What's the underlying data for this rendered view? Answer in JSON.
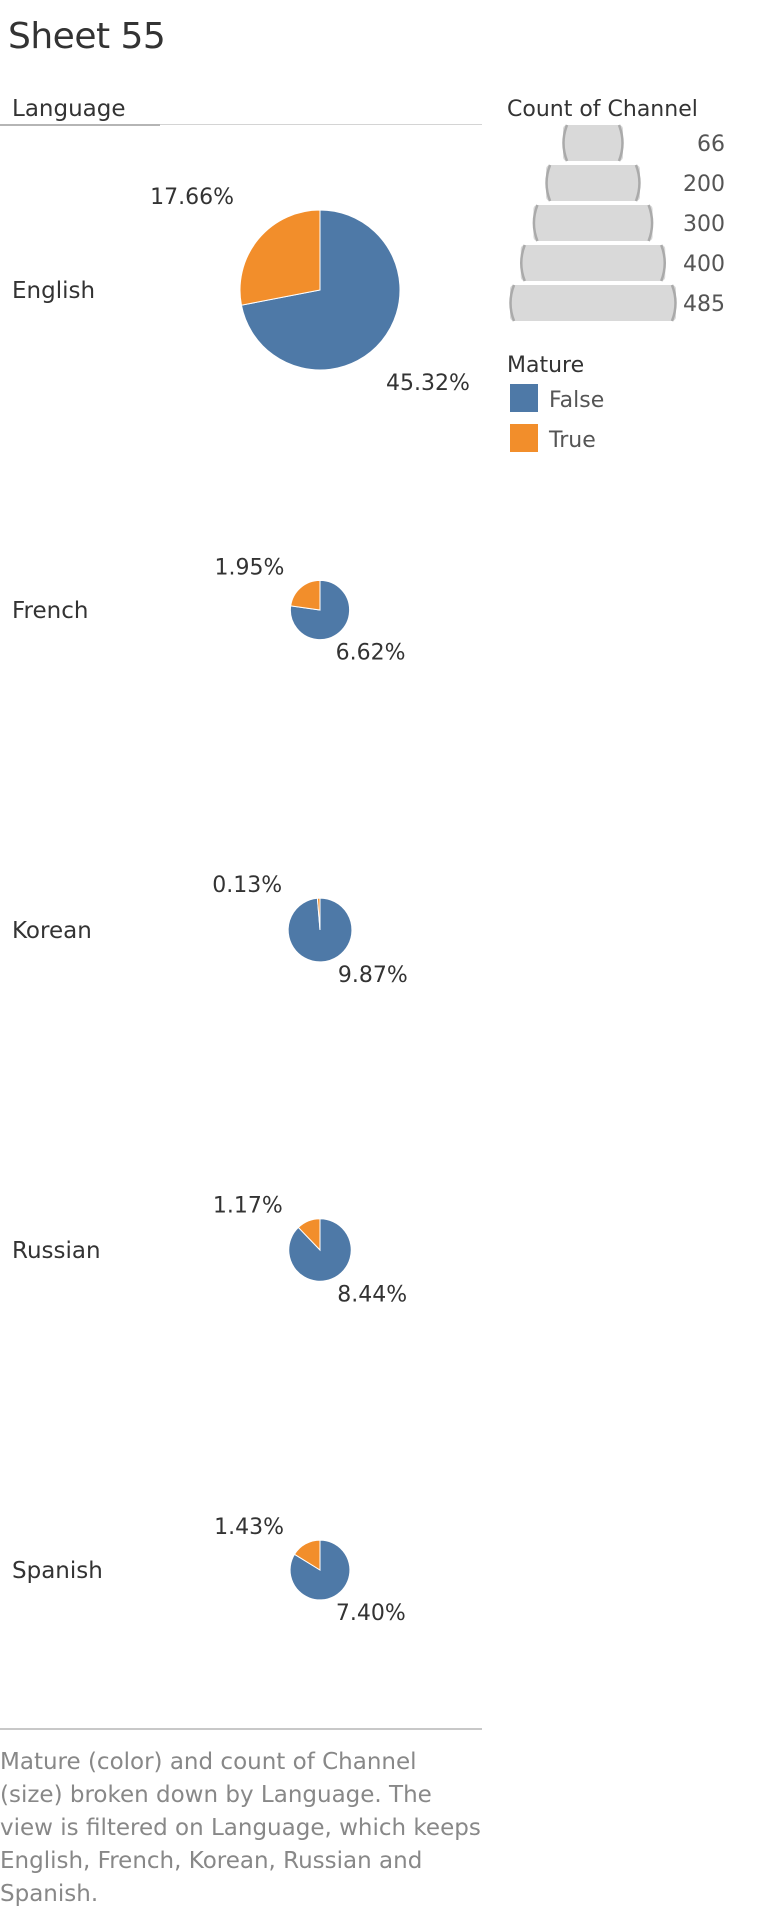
{
  "sheet_title": "Sheet 55",
  "row_header": "Language",
  "caption": "Mature (color) and count of Channel (size) broken down by Language. The view is filtered on Language, which keeps English, French, Korean, Russian and Spanish.",
  "colors": {
    "False": "#4e79a7",
    "True": "#f28e2b",
    "size_legend_fill": "#d9d9d9",
    "size_legend_stroke": "#aaaaaa"
  },
  "chart_data": {
    "type": "pie",
    "rows": [
      {
        "language": "English",
        "count": 629,
        "slices": [
          {
            "mature": "False",
            "percent": 45.32,
            "label": "45.32%"
          },
          {
            "mature": "True",
            "percent": 17.66,
            "label": "17.66%"
          }
        ]
      },
      {
        "language": "French",
        "count": 86,
        "slices": [
          {
            "mature": "False",
            "percent": 6.62,
            "label": "6.62%"
          },
          {
            "mature": "True",
            "percent": 1.95,
            "label": "1.95%"
          }
        ]
      },
      {
        "language": "Korean",
        "count": 100,
        "slices": [
          {
            "mature": "False",
            "percent": 9.87,
            "label": "9.87%"
          },
          {
            "mature": "True",
            "percent": 0.13,
            "label": "0.13%"
          }
        ]
      },
      {
        "language": "Russian",
        "count": 96,
        "slices": [
          {
            "mature": "False",
            "percent": 8.44,
            "label": "8.44%"
          },
          {
            "mature": "True",
            "percent": 1.17,
            "label": "1.17%"
          }
        ]
      },
      {
        "language": "Spanish",
        "count": 88,
        "slices": [
          {
            "mature": "False",
            "percent": 7.4,
            "label": "7.40%"
          },
          {
            "mature": "True",
            "percent": 1.43,
            "label": "1.43%"
          }
        ]
      }
    ],
    "size_legend": {
      "title": "Count of Channel",
      "values": [
        "66",
        "200",
        "300",
        "400",
        "485"
      ],
      "counts": [
        66,
        200,
        300,
        400,
        485
      ]
    },
    "color_legend": {
      "title": "Mature",
      "items": [
        {
          "label": "False",
          "key": "False"
        },
        {
          "label": "True",
          "key": "True"
        }
      ]
    }
  }
}
